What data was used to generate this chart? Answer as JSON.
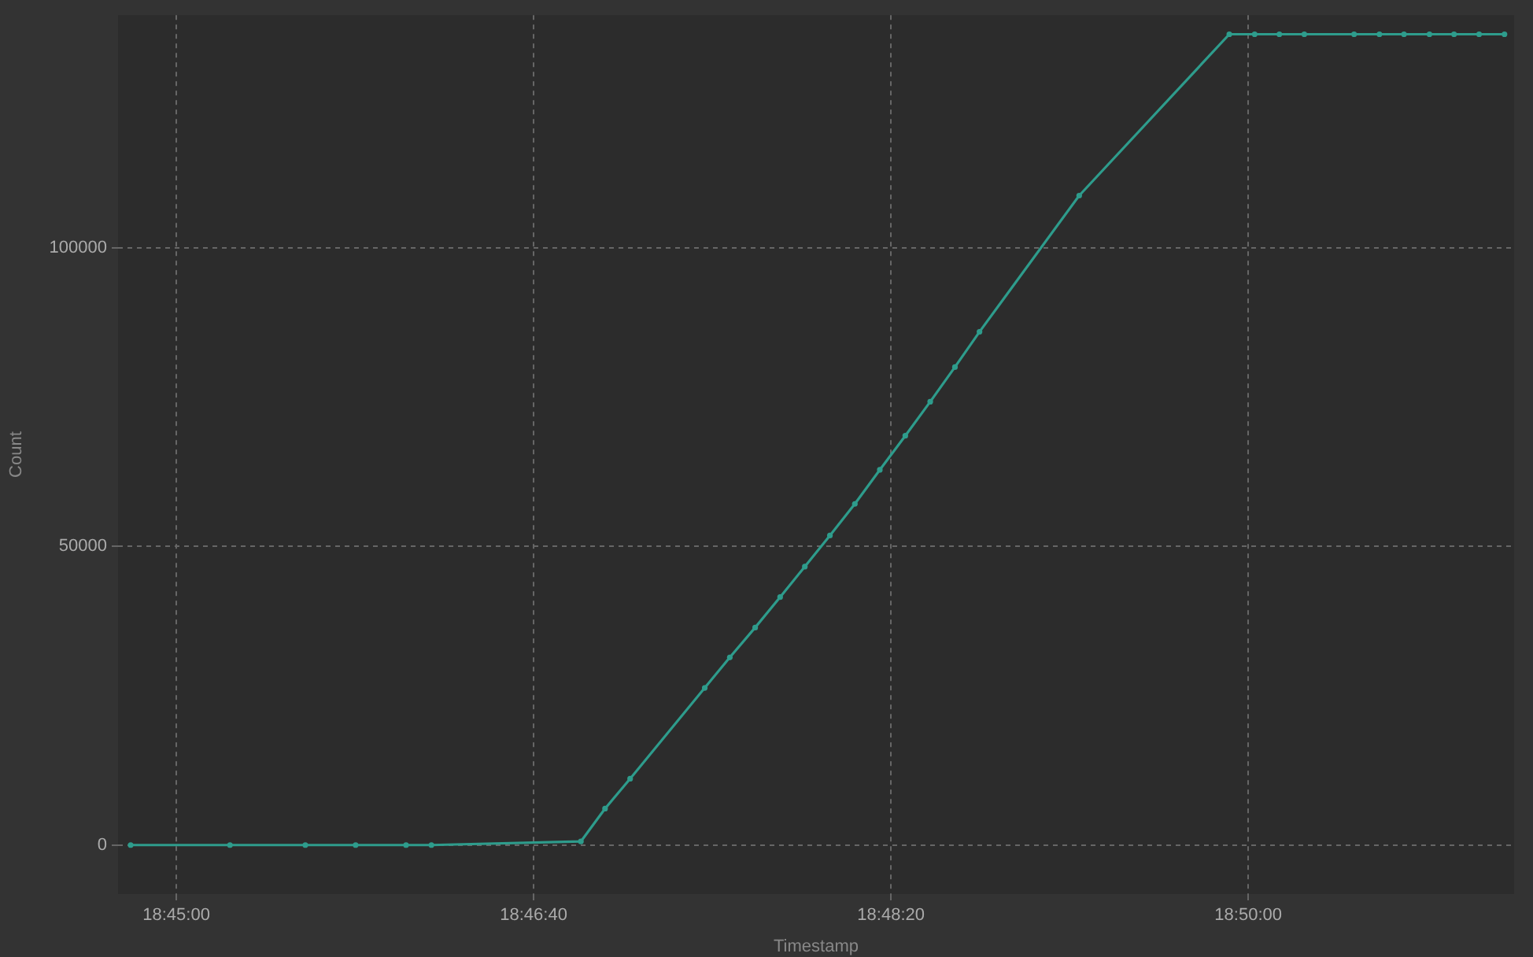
{
  "chart_data": {
    "type": "line",
    "xlabel": "Timestamp",
    "ylabel": "Count",
    "x": [
      18.74645,
      18.75417,
      18.76003,
      18.76394,
      18.76786,
      18.76983,
      18.78145,
      18.78333,
      18.78528,
      18.79108,
      18.79303,
      18.795,
      18.79694,
      18.79886,
      18.80081,
      18.80275,
      18.80469,
      18.80667,
      18.80861,
      18.81053,
      18.81244,
      18.82019,
      18.83186,
      18.83383,
      18.83575,
      18.83769,
      18.84156,
      18.84353,
      18.84544,
      18.84742,
      18.84933,
      18.85128,
      18.85325
    ],
    "series": [
      {
        "color": "#2e9c8c",
        "values": [
          0,
          0,
          0,
          0,
          0,
          0,
          600,
          6100,
          11100,
          26300,
          31400,
          36400,
          41500,
          46600,
          51800,
          57100,
          62800,
          68500,
          74200,
          80000,
          85900,
          108700,
          135700,
          135700,
          135700,
          135700,
          135700,
          135700,
          135700,
          135700,
          135700,
          135700,
          135700
        ]
      }
    ],
    "xlim": [
      18.74547,
      18.854
    ],
    "xticks": [
      {
        "value": 18.75,
        "label": "18:45:00"
      },
      {
        "value": 18.777778,
        "label": "18:46:40"
      },
      {
        "value": 18.805556,
        "label": "18:48:20"
      },
      {
        "value": 18.833333,
        "label": "18:50:00"
      }
    ],
    "ylim": [
      -8200,
      138900
    ],
    "yticks": [
      0,
      50000,
      100000
    ],
    "grid": true,
    "legend": false,
    "marker": "circle",
    "line_style": "solid"
  }
}
